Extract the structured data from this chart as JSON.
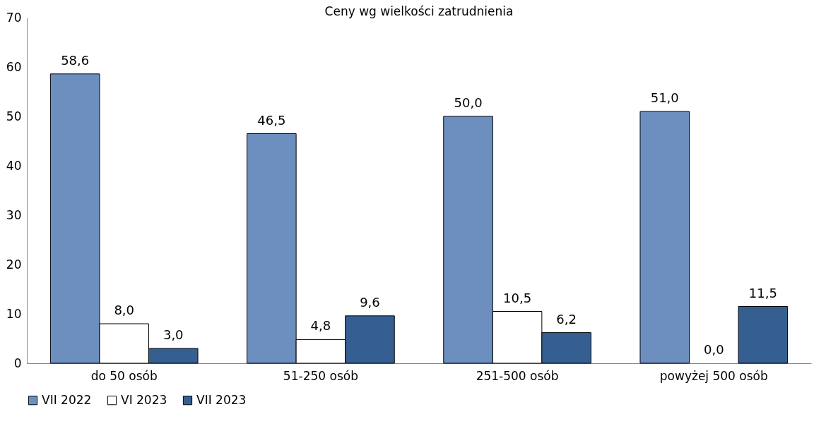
{
  "chart_data": {
    "type": "bar",
    "title": "Ceny wg wielkości zatrudnienia",
    "categories": [
      "do 50 osób",
      "51-250 osób",
      "251-500 osób",
      "powyżej 500 osób"
    ],
    "series": [
      {
        "name": "VII 2022",
        "color": "#6d8fc0",
        "values": [
          58.6,
          46.5,
          50.0,
          51.0
        ],
        "value_labels": [
          "58,6",
          "46,5",
          "50,0",
          "51,0"
        ]
      },
      {
        "name": "VI 2023",
        "color": "#ffffff",
        "values": [
          8.0,
          4.8,
          10.5,
          0.0
        ],
        "value_labels": [
          "8,0",
          "4,8",
          "10,5",
          "0,0"
        ]
      },
      {
        "name": "VII 2023",
        "color": "#355f91",
        "values": [
          3.0,
          9.6,
          6.2,
          11.5
        ],
        "value_labels": [
          "3,0",
          "9,6",
          "6,2",
          "11,5"
        ]
      }
    ],
    "ylim": [
      0,
      70
    ],
    "yticks": [
      0,
      10,
      20,
      30,
      40,
      50,
      60,
      70
    ],
    "grid": false,
    "legend": "bottom"
  }
}
